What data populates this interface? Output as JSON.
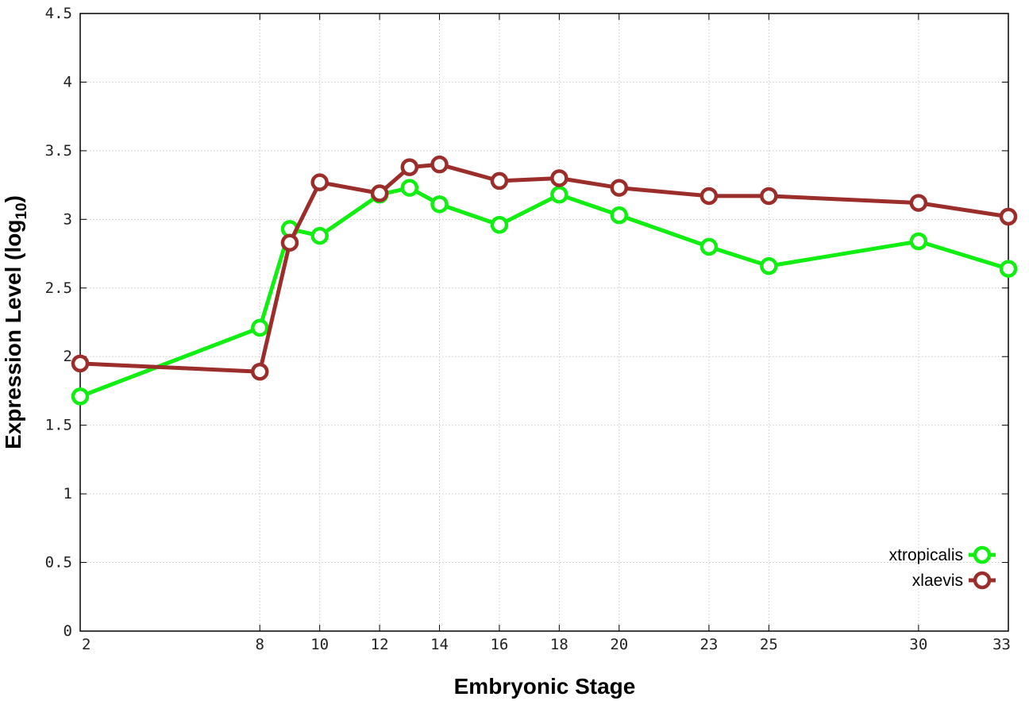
{
  "chart_data": {
    "type": "line",
    "xlabel": "Embryonic Stage",
    "ylabel": "Expression Level (log",
    "ylabel_sub": "10",
    "ylabel_close": ")",
    "xlim": [
      2,
      33
    ],
    "ylim": [
      0,
      4.5
    ],
    "x": [
      2,
      8,
      9,
      10,
      12,
      13,
      14,
      16,
      18,
      20,
      23,
      25,
      30,
      33
    ],
    "x_ticks": [
      2,
      8,
      10,
      12,
      14,
      16,
      18,
      20,
      23,
      25,
      30,
      33
    ],
    "x_tick_labels": [
      "2",
      "8",
      "10",
      "12",
      "14",
      "16",
      "18",
      "20",
      "23",
      "25",
      "30",
      "33"
    ],
    "y_ticks": [
      0,
      0.5,
      1,
      1.5,
      2,
      2.5,
      3,
      3.5,
      4,
      4.5
    ],
    "y_tick_labels": [
      "0",
      "0.5",
      "1",
      "1.5",
      "2",
      "2.5",
      "3",
      "3.5",
      "4",
      "4.5"
    ],
    "grid": true,
    "legend_position": "bottom-right",
    "series": [
      {
        "name": "xtropicalis",
        "color": "#11ee11",
        "values": [
          1.71,
          2.21,
          2.93,
          2.88,
          3.18,
          3.23,
          3.11,
          2.96,
          3.18,
          3.03,
          2.8,
          2.66,
          2.84,
          2.64
        ]
      },
      {
        "name": "xlaevis",
        "color": "#9b2d2a",
        "values": [
          1.95,
          1.89,
          2.83,
          3.27,
          3.19,
          3.38,
          3.4,
          3.28,
          3.3,
          3.23,
          3.17,
          3.17,
          3.12,
          3.02
        ]
      }
    ]
  }
}
